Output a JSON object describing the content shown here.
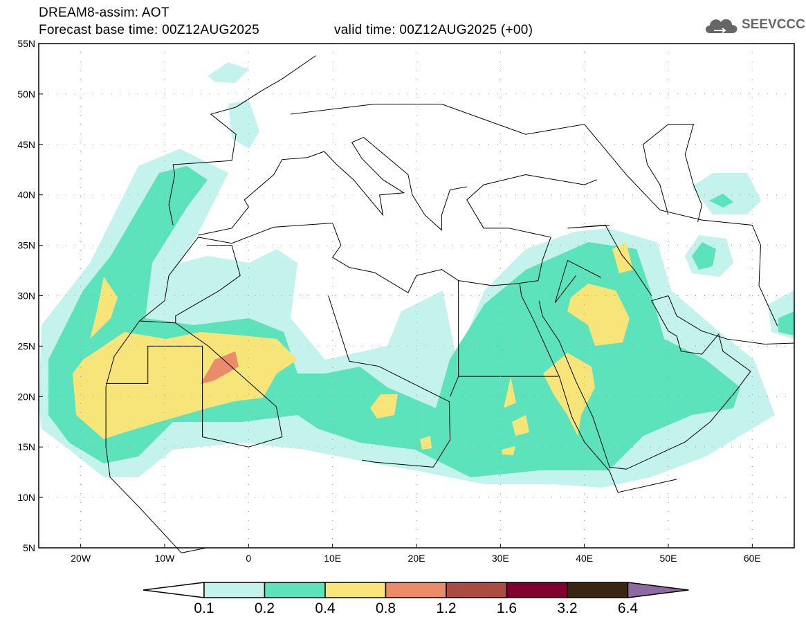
{
  "header": {
    "title": "DREAM8-assim: AOT",
    "base_time": "Forecast base time: 00Z12AUG2025",
    "valid_time": "valid time: 00Z12AUG2025 (+00)"
  },
  "logo": {
    "text": "SEEVCCC",
    "icon": "cloud-icon"
  },
  "axes": {
    "lat_labels": [
      "55N",
      "50N",
      "45N",
      "40N",
      "35N",
      "30N",
      "25N",
      "20N",
      "15N",
      "10N",
      "5N"
    ],
    "lat_values": [
      55,
      50,
      45,
      40,
      35,
      30,
      25,
      20,
      15,
      10,
      5
    ],
    "lon_labels": [
      "20W",
      "10W",
      "0",
      "10E",
      "20E",
      "30E",
      "40E",
      "50E",
      "60E"
    ],
    "lon_values": [
      -20,
      -10,
      0,
      10,
      20,
      30,
      40,
      50,
      60
    ],
    "lon_range": [
      -25,
      65
    ],
    "lat_range": [
      5,
      55
    ]
  },
  "colorbar": {
    "labels": [
      "0.1",
      "0.2",
      "0.4",
      "0.8",
      "1.2",
      "1.6",
      "3.2",
      "6.4"
    ],
    "colors": [
      "#ffffff",
      "#c4f2ec",
      "#5de3bb",
      "#f8e57a",
      "#ea8c6a",
      "#ab4c42",
      "#82002f",
      "#3a2412",
      "#8d6ba0"
    ]
  }
}
